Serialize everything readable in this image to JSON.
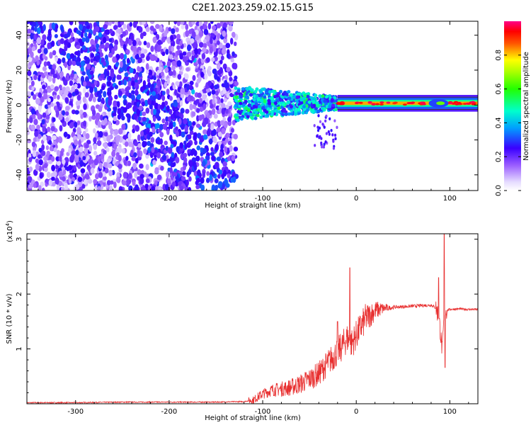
{
  "title": "C2E1.2023.259.02.15.G15",
  "colors": {
    "spectral_low": "#f0e6ff",
    "spectral_mid": "#6a1bf0",
    "snr_line": "#e83030"
  },
  "chart_data": [
    {
      "type": "heatmap",
      "xlabel": "Height of straight line (km)",
      "ylabel": "Frequency (Hz)",
      "xlim": [
        -352,
        130
      ],
      "ylim": [
        -49,
        48
      ],
      "x_ticks": [
        -300,
        -200,
        -100,
        0,
        100
      ],
      "x_tick_labels": [
        "-300",
        "-200",
        "-100",
        "0",
        "100"
      ],
      "y_ticks": [
        -40,
        -20,
        0,
        20,
        40
      ],
      "y_tick_labels": [
        "-40",
        "-20",
        "0",
        "20",
        "40"
      ],
      "grid": false,
      "colorbar": {
        "label": "Normalized spectral amplitude",
        "range": [
          0.0,
          1.0
        ],
        "ticks": [
          0.0,
          0.2,
          0.4,
          0.6,
          0.8
        ],
        "tick_labels": [
          "0.0",
          "0.2",
          "0.4",
          "0.6",
          "0.8"
        ],
        "colormap": "rainbow (purple-blue-cyan-green-yellow-red-magenta)"
      },
      "regions": [
        {
          "x_range": [
            -352,
            -130
          ],
          "freq_range": [
            -49,
            48
          ],
          "amplitude": 0.12,
          "pattern": "broadband scatter"
        },
        {
          "x_range": [
            -130,
            -20
          ],
          "freq_range": [
            -8,
            8
          ],
          "amplitude": 0.35,
          "pattern": "concentrated near 0 Hz"
        },
        {
          "x_range": [
            -20,
            130
          ],
          "freq_range": [
            -2,
            2
          ],
          "amplitude": 0.85,
          "pattern": "narrow line at 0 Hz"
        }
      ]
    },
    {
      "type": "line",
      "xlabel": "Height of straight line (km)",
      "ylabel": "SNR (10 * v/v)",
      "y_multiplier_label": "(x10",
      "y_multiplier_exp": "4",
      "y_multiplier_close": ")",
      "xlim": [
        -352,
        130
      ],
      "ylim": [
        0,
        3.1
      ],
      "x_ticks": [
        -300,
        -200,
        -100,
        0,
        100
      ],
      "x_tick_labels": [
        "-300",
        "-200",
        "-100",
        "0",
        "100"
      ],
      "y_ticks": [
        1,
        2,
        3
      ],
      "y_tick_labels": [
        "1",
        "2",
        "3"
      ],
      "grid": false,
      "series": [
        {
          "x": [
            -352,
            -300,
            -250,
            -200,
            -150,
            -120,
            -110,
            -100,
            -90,
            -80,
            -70,
            -60,
            -50,
            -40,
            -30,
            -20,
            -15,
            -10,
            -5,
            0,
            5,
            10,
            20,
            30,
            40,
            50,
            60,
            70,
            80,
            85,
            88,
            90,
            92,
            94,
            96,
            100,
            110,
            120,
            130
          ],
          "y": [
            0.02,
            0.02,
            0.03,
            0.03,
            0.03,
            0.04,
            0.07,
            0.18,
            0.25,
            0.27,
            0.3,
            0.36,
            0.45,
            0.55,
            0.75,
            0.95,
            1.05,
            1.2,
            1.1,
            1.25,
            1.4,
            1.55,
            1.7,
            1.74,
            1.76,
            1.77,
            1.78,
            1.79,
            1.8,
            1.75,
            1.6,
            1.3,
            0.95,
            1.65,
            1.7,
            1.72,
            1.73,
            1.72,
            1.72
          ],
          "spikes": [
            {
              "x": -7,
              "y": 2.48
            },
            {
              "x": -20,
              "y": 1.5
            },
            {
              "x": 88,
              "y": 2.3
            },
            {
              "x": 94,
              "y": 3.1
            },
            {
              "x": 95,
              "y": 0.66
            }
          ]
        }
      ]
    }
  ]
}
